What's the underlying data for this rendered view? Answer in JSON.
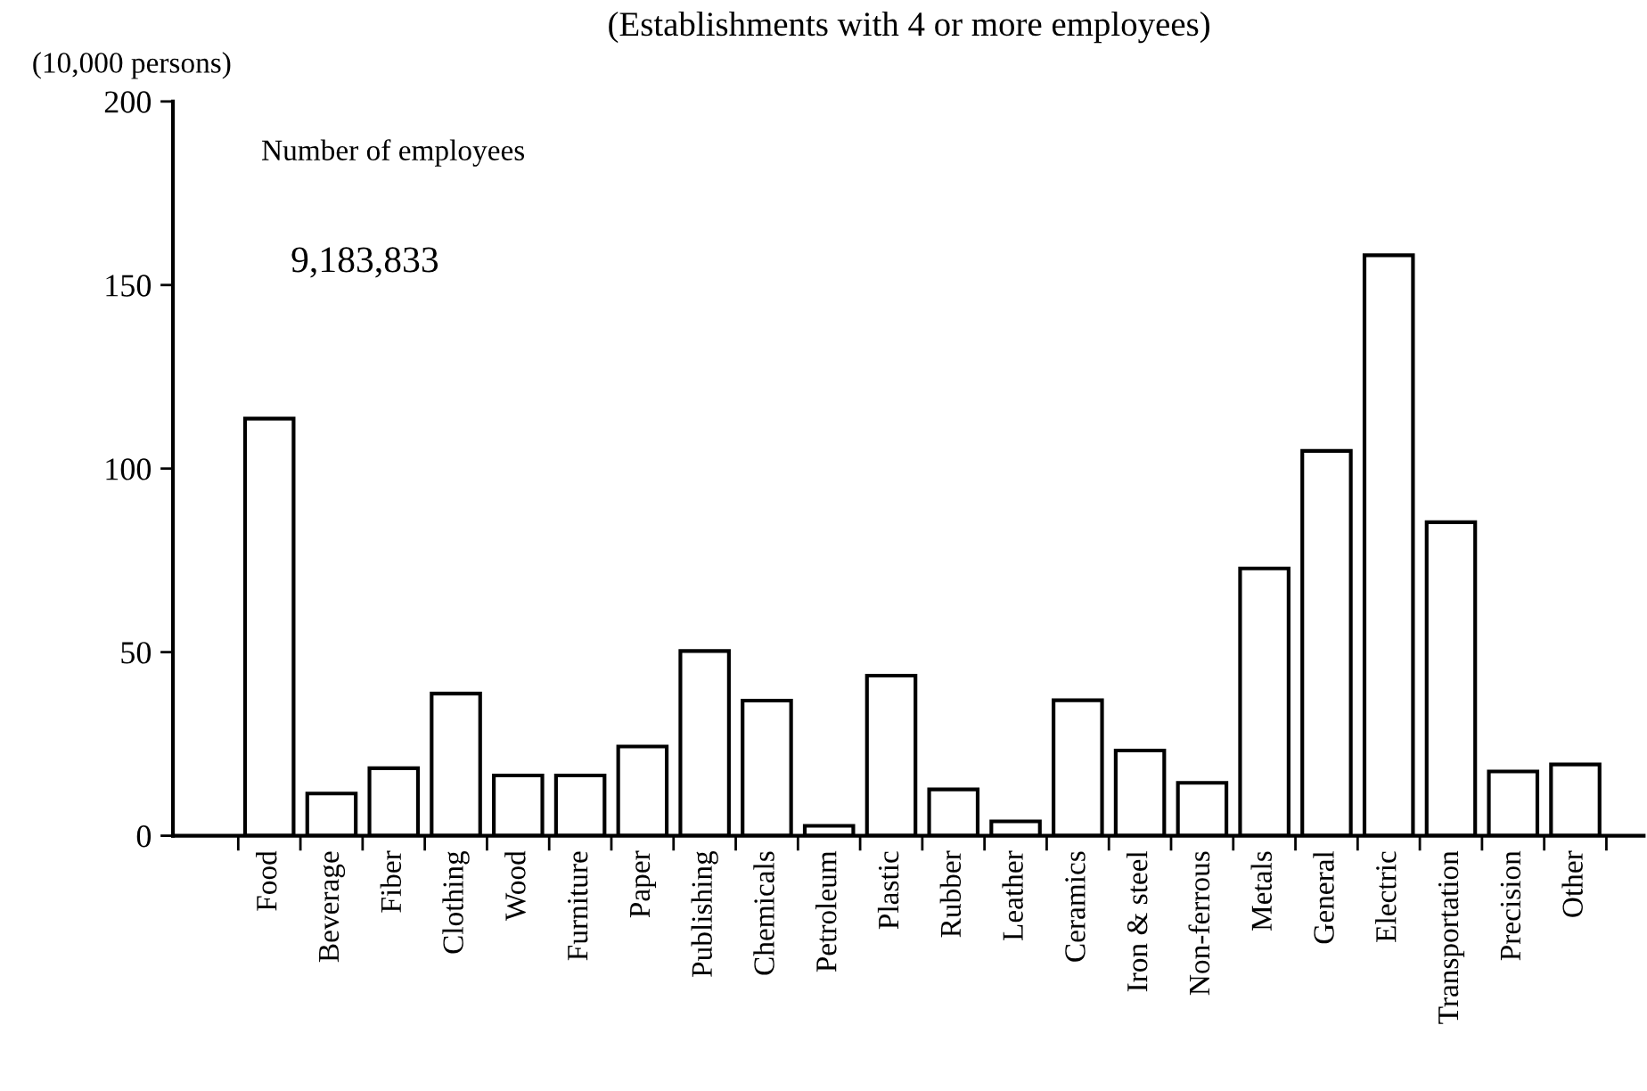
{
  "chart_data": {
    "type": "bar",
    "title": "(Establishments with 4 or more employees)",
    "ylabel": "(10,000 persons)",
    "annotations": [
      "Number of employees",
      "9,183,833"
    ],
    "categories": [
      "Food",
      "Beverage",
      "Fiber",
      "Clothing",
      "Wood",
      "Furniture",
      "Paper",
      "Publishing",
      "Chemicals",
      "Petroleum",
      "Plastic",
      "Rubber",
      "Leather",
      "Ceramics",
      "Iron & steel",
      "Non-ferrous",
      "Metals",
      "General",
      "Electric",
      "Transportation",
      "Precision",
      "Other"
    ],
    "values": [
      113.6,
      11.5,
      18.4,
      38.7,
      16.4,
      16.4,
      24.3,
      50.3,
      36.8,
      2.7,
      43.6,
      12.6,
      3.9,
      36.9,
      23.2,
      14.4,
      72.8,
      104.8,
      158.1,
      85.4,
      17.5,
      19.4
    ],
    "color": "#ffffff",
    "ylim": [
      0,
      200
    ],
    "yticks": [
      0,
      50,
      100,
      150,
      200
    ],
    "grid": false,
    "legend": false
  }
}
